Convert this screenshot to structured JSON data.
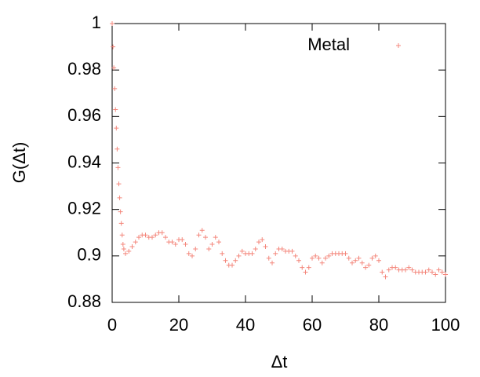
{
  "chart_data": {
    "type": "scatter",
    "xlabel": "Δt",
    "ylabel": "G(Δt)",
    "xlim": [
      0,
      100
    ],
    "xticks": [
      0,
      20,
      40,
      60,
      80,
      100
    ],
    "ylim": [
      0.88,
      1
    ],
    "yticks": [
      0.88,
      0.9,
      0.92,
      0.94,
      0.96,
      0.98,
      1
    ],
    "legend_position": "top-right",
    "series": [
      {
        "name": "Metal",
        "color": "#f4877c",
        "x": [
          0,
          0.25,
          0.5,
          0.75,
          1,
          1.25,
          1.5,
          1.75,
          2,
          2.25,
          2.5,
          2.75,
          3,
          3.25,
          3.5,
          4,
          5,
          6,
          7,
          8,
          9,
          10,
          11,
          12,
          13,
          14,
          15,
          16,
          17,
          18,
          19,
          20,
          21,
          22,
          23,
          24,
          25,
          26,
          27,
          28,
          29,
          30,
          31,
          32,
          33,
          34,
          35,
          36,
          37,
          38,
          39,
          40,
          41,
          42,
          43,
          44,
          45,
          46,
          47,
          48,
          49,
          50,
          51,
          52,
          53,
          54,
          55,
          56,
          57,
          58,
          59,
          60,
          61,
          62,
          63,
          64,
          65,
          66,
          67,
          68,
          69,
          70,
          71,
          72,
          73,
          74,
          75,
          76,
          77,
          78,
          79,
          80,
          81,
          82,
          83,
          84,
          85,
          86,
          87,
          88,
          89,
          90,
          91,
          92,
          93,
          94,
          95,
          96,
          97,
          98,
          99,
          100
        ],
        "values": [
          1,
          0.99,
          0.981,
          0.972,
          0.963,
          0.955,
          0.946,
          0.938,
          0.931,
          0.925,
          0.919,
          0.914,
          0.909,
          0.905,
          0.903,
          0.901,
          0.902,
          0.904,
          0.906,
          0.908,
          0.909,
          0.909,
          0.908,
          0.908,
          0.909,
          0.91,
          0.91,
          0.908,
          0.906,
          0.906,
          0.905,
          0.907,
          0.907,
          0.905,
          0.901,
          0.9,
          0.903,
          0.909,
          0.911,
          0.908,
          0.903,
          0.905,
          0.908,
          0.906,
          0.901,
          0.898,
          0.896,
          0.896,
          0.898,
          0.9,
          0.902,
          0.901,
          0.901,
          0.901,
          0.903,
          0.906,
          0.907,
          0.904,
          0.899,
          0.897,
          0.901,
          0.903,
          0.903,
          0.902,
          0.902,
          0.902,
          0.9,
          0.898,
          0.895,
          0.893,
          0.895,
          0.899,
          0.9,
          0.899,
          0.897,
          0.899,
          0.9,
          0.901,
          0.901,
          0.901,
          0.901,
          0.901,
          0.899,
          0.897,
          0.898,
          0.899,
          0.897,
          0.895,
          0.896,
          0.899,
          0.9,
          0.898,
          0.893,
          0.891,
          0.894,
          0.895,
          0.895,
          0.894,
          0.894,
          0.894,
          0.895,
          0.894,
          0.893,
          0.893,
          0.893,
          0.893,
          0.894,
          0.893,
          0.892,
          0.894,
          0.893,
          0.892
        ]
      }
    ]
  }
}
